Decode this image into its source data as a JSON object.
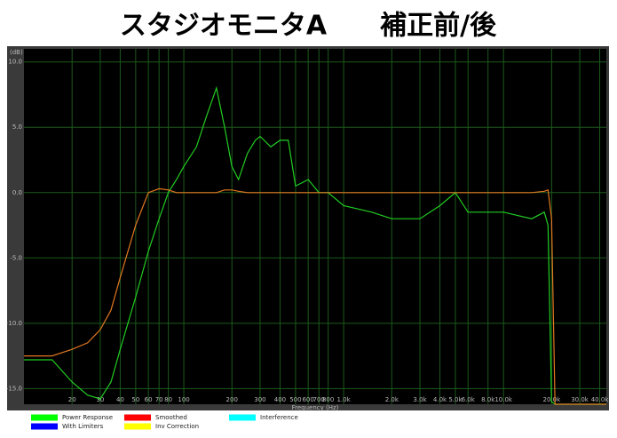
{
  "title": "スタジオモニタA　　補正前/後",
  "chart_data": {
    "type": "line",
    "y_unit_label": "(dB)",
    "xlabel": "Frequency (Hz)",
    "log_x": true,
    "grid": true,
    "x": [
      10,
      15,
      20,
      25,
      30,
      35,
      40,
      50,
      60,
      70,
      80,
      90,
      100,
      120,
      140,
      160,
      180,
      200,
      220,
      250,
      280,
      300,
      350,
      400,
      450,
      500,
      600,
      700,
      800,
      1000,
      1500,
      2000,
      3000,
      4000,
      5000,
      6000,
      8000,
      10000,
      15000,
      18000,
      19000,
      20000,
      21000,
      25000,
      44000
    ],
    "series": [
      {
        "name": "Power Response",
        "color": "#22cc22",
        "values": [
          -12.8,
          -12.8,
          -14.5,
          -15.5,
          -15.8,
          -14.5,
          -12,
          -8,
          -4.5,
          -2,
          0,
          1,
          2,
          3.5,
          6,
          8,
          5,
          2,
          1,
          3,
          4,
          4.3,
          3.5,
          4,
          4,
          0.5,
          1,
          0,
          0,
          -1,
          -1.5,
          -2,
          -2,
          -1,
          0,
          -1.5,
          -1.5,
          -1.5,
          -2,
          -1.5,
          -2.5,
          -16,
          -16.2,
          -16.2,
          -16.2
        ]
      },
      {
        "color": "#e07820",
        "values": [
          -12.5,
          -12.5,
          -12,
          -11.5,
          -10.5,
          -9,
          -6.5,
          -2.5,
          0,
          0.3,
          0.2,
          0,
          0,
          0,
          0,
          0,
          0.2,
          0.2,
          0.1,
          0,
          0,
          0,
          0,
          0,
          0,
          0,
          0,
          0,
          0,
          0,
          0,
          0,
          0,
          0,
          0,
          0,
          0,
          0,
          0,
          0.1,
          0.2,
          -2,
          -16.2,
          -16.2,
          -16.2
        ]
      }
    ],
    "legend_entries": [
      {
        "name": "Power Response",
        "color": "#00ff00"
      },
      {
        "name": "With Limiters",
        "color": "#0000ff"
      },
      {
        "name": "Smoothed",
        "color": "#ff0000"
      },
      {
        "name": "Inv Correction",
        "color": "#ffff00"
      },
      {
        "name": "Interference",
        "color": "#00ffff"
      }
    ],
    "xlim": [
      10,
      44000
    ],
    "ylim": [
      -16.2,
      11
    ],
    "xticks": [
      20,
      30,
      40,
      50,
      60,
      70,
      80,
      100,
      200,
      300,
      400,
      500,
      600,
      700,
      800,
      {
        "value": 1000,
        "label": "1.0k"
      },
      {
        "value": 2000,
        "label": "2.0k"
      },
      {
        "value": 3000,
        "label": "3.0k"
      },
      {
        "value": 4000,
        "label": "4.0k"
      },
      {
        "value": 5000,
        "label": "5.0k"
      },
      {
        "value": 6000,
        "label": "6.0k"
      },
      {
        "value": 8000,
        "label": "8.0k"
      },
      {
        "value": 10000,
        "label": "10.0k"
      },
      {
        "value": 20000,
        "label": "20.0k"
      },
      {
        "value": 30000,
        "label": "30.0k"
      },
      {
        "value": 40000,
        "label": "40.0k"
      }
    ],
    "yticks": [
      {
        "value": 10,
        "label": "10.0"
      },
      {
        "value": 5,
        "label": "5.0"
      },
      {
        "value": 0,
        "label": "0.0"
      },
      {
        "value": -5,
        "label": "-5.0"
      },
      {
        "value": -10,
        "label": "-10.0"
      },
      {
        "value": -15,
        "label": "-15.0"
      }
    ]
  }
}
